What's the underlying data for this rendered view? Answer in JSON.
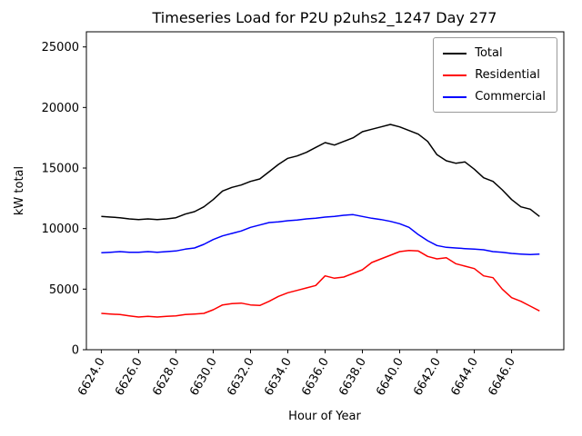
{
  "chart_data": {
    "type": "line",
    "title": "Timeseries Load for P2U p2uhs2_1247  Day 277",
    "xlabel": "Hour of Year",
    "ylabel": "kW total",
    "xlim": [
      6623.2,
      6648.8
    ],
    "ylim": [
      0,
      26250
    ],
    "grid": false,
    "legend_position": "upper right",
    "x_ticks": [
      6624,
      6626,
      6628,
      6630,
      6632,
      6634,
      6636,
      6638,
      6640,
      6642,
      6644,
      6646
    ],
    "x_tick_labels": [
      "6624.0",
      "6626.0",
      "6628.0",
      "6630.0",
      "6632.0",
      "6634.0",
      "6636.0",
      "6638.0",
      "6640.0",
      "6642.0",
      "6644.0",
      "6646.0"
    ],
    "y_ticks": [
      0,
      5000,
      10000,
      15000,
      20000,
      25000
    ],
    "y_tick_labels": [
      "0",
      "5000",
      "10000",
      "15000",
      "20000",
      "25000"
    ],
    "x": [
      6624.0,
      6624.5,
      6625.0,
      6625.5,
      6626.0,
      6626.5,
      6627.0,
      6627.5,
      6628.0,
      6628.5,
      6629.0,
      6629.5,
      6630.0,
      6630.5,
      6631.0,
      6631.5,
      6632.0,
      6632.5,
      6633.0,
      6633.5,
      6634.0,
      6634.5,
      6635.0,
      6635.5,
      6636.0,
      6636.5,
      6637.0,
      6637.5,
      6638.0,
      6638.5,
      6639.0,
      6639.5,
      6640.0,
      6640.5,
      6641.0,
      6641.5,
      6642.0,
      6642.5,
      6643.0,
      6643.5,
      6644.0,
      6644.5,
      6645.0,
      6645.5,
      6646.0,
      6646.5,
      6647.0,
      6647.5
    ],
    "series": [
      {
        "name": "Total",
        "color": "#000000",
        "values": [
          11000,
          10950,
          10900,
          10800,
          10750,
          10800,
          10750,
          10800,
          10900,
          11200,
          11400,
          11800,
          12400,
          13100,
          13400,
          13600,
          13900,
          14100,
          14700,
          15300,
          15800,
          16000,
          16300,
          16700,
          17100,
          16900,
          17200,
          17500,
          18000,
          18200,
          18400,
          18600,
          18400,
          18100,
          17800,
          17200,
          16100,
          15600,
          15400,
          15500,
          14900,
          14200,
          13900,
          13200,
          12400,
          11800,
          11600,
          11000
        ]
      },
      {
        "name": "Residential",
        "color": "#ff0000",
        "values": [
          3000,
          2950,
          2900,
          2800,
          2700,
          2750,
          2700,
          2750,
          2800,
          2900,
          2950,
          3000,
          3300,
          3700,
          3800,
          3850,
          3700,
          3650,
          4000,
          4400,
          4700,
          4900,
          5100,
          5300,
          6100,
          5900,
          6000,
          6300,
          6600,
          7200,
          7500,
          7800,
          8100,
          8200,
          8150,
          7700,
          7500,
          7600,
          7100,
          6900,
          6700,
          6100,
          5950,
          5000,
          4300,
          4000,
          3600,
          3200
        ]
      },
      {
        "name": "Commercial",
        "color": "#0000ff",
        "values": [
          8000,
          8050,
          8100,
          8050,
          8050,
          8100,
          8050,
          8100,
          8150,
          8300,
          8400,
          8700,
          9100,
          9400,
          9600,
          9800,
          10100,
          10300,
          10500,
          10550,
          10650,
          10700,
          10800,
          10850,
          10950,
          11000,
          11100,
          11150,
          11000,
          10850,
          10750,
          10600,
          10400,
          10100,
          9500,
          9000,
          8600,
          8450,
          8400,
          8350,
          8300,
          8250,
          8100,
          8050,
          7950,
          7900,
          7850,
          7900
        ]
      }
    ]
  }
}
